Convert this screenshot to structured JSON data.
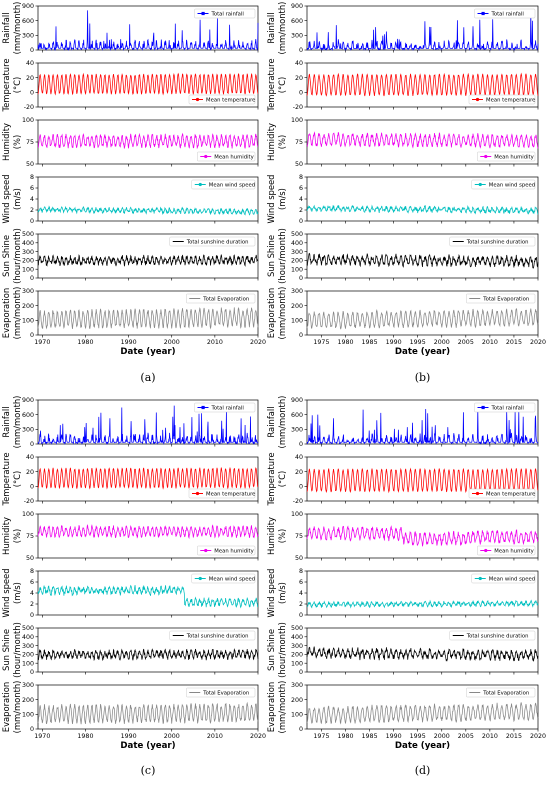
{
  "chart_data": [
    {
      "label": "(a)",
      "type": "line",
      "xlabel": "Date (year)",
      "xlim": [
        1969,
        2020
      ],
      "xticks": [
        1970,
        1980,
        1990,
        2000,
        2010,
        2020
      ],
      "panels": [
        {
          "name": "rainfall",
          "ylabel": [
            "Rainfall",
            "(mm/month)"
          ],
          "legend": "Total rainfall",
          "legend_marker": "square",
          "color": "#0000ff",
          "ylim": [
            0,
            900
          ],
          "yticks": [
            0,
            300,
            600,
            900
          ],
          "base": 90,
          "amp": 120,
          "spike": 420,
          "pattern": "spiky",
          "trend": 0,
          "noise": 0.5,
          "series": [
            {
              "name": "Total rainfall"
            }
          ]
        },
        {
          "name": "temperature",
          "ylabel": [
            "Temperature",
            "(°C)"
          ],
          "legend": "Mean temperature",
          "legend_marker": "dot",
          "color": "#ff0000",
          "ylim": [
            -20,
            40
          ],
          "yticks": [
            -20,
            0,
            20,
            40
          ],
          "base": 11,
          "amp": 13,
          "pattern": "seasonal",
          "trend": 0.5,
          "noise": 1.2,
          "series": [
            {
              "name": "Mean temperature"
            }
          ]
        },
        {
          "name": "humidity",
          "ylabel": [
            "Humidity",
            "(%)"
          ],
          "legend": "Mean humidity",
          "legend_marker": "dot",
          "color": "#ee00ee",
          "ylim": [
            50,
            100
          ],
          "yticks": [
            50,
            75,
            100
          ],
          "base": 76,
          "amp": 6,
          "pattern": "seasonal",
          "trend": 0,
          "noise": 2.5,
          "series": [
            {
              "name": "Mean humidity"
            }
          ]
        },
        {
          "name": "wind",
          "ylabel": [
            "Wind speed",
            "(m/s)"
          ],
          "legend": "Mean wind speed",
          "legend_marker": "dot",
          "color": "#00bfbf",
          "ylim": [
            0,
            8
          ],
          "yticks": [
            0,
            2,
            4,
            6,
            8
          ],
          "base": 2.1,
          "amp": 0.3,
          "pattern": "seasonal",
          "trend": -0.4,
          "noise": 0.3,
          "series": [
            {
              "name": "Mean wind speed"
            }
          ]
        },
        {
          "name": "sunshine",
          "ylabel": [
            "Sun Shine",
            "(hour/month)"
          ],
          "legend": "Total sunshine duration",
          "legend_marker": "line",
          "color": "#000000",
          "ylim": [
            0,
            500
          ],
          "yticks": [
            0,
            100,
            200,
            300,
            400,
            500
          ],
          "base": 195,
          "amp": 35,
          "pattern": "seasonal",
          "trend": 10,
          "noise": 30,
          "series": [
            {
              "name": "Total sunshine duration"
            }
          ]
        },
        {
          "name": "evaporation",
          "ylabel": [
            "Evaporation",
            "(mm/month)"
          ],
          "legend": "Total Evaporation",
          "legend_marker": "line",
          "color": "#888888",
          "ylim": [
            0,
            300
          ],
          "yticks": [
            0,
            100,
            200,
            300
          ],
          "base": 105,
          "amp": 55,
          "pattern": "seasonal",
          "trend": 15,
          "noise": 15,
          "series": [
            {
              "name": "Total Evaporation"
            }
          ]
        }
      ]
    },
    {
      "label": "(b)",
      "type": "line",
      "xlabel": "Date (year)",
      "xlim": [
        1972,
        2020
      ],
      "xticks": [
        1975,
        1980,
        1985,
        1990,
        1995,
        2000,
        2005,
        2010,
        2015,
        2020
      ],
      "panels": [
        {
          "name": "rainfall",
          "ylabel": [
            "Rainfall",
            "(mm/month)"
          ],
          "legend": "Total rainfall",
          "legend_marker": "square",
          "color": "#0000ff",
          "ylim": [
            0,
            900
          ],
          "yticks": [
            0,
            300,
            600,
            900
          ],
          "base": 80,
          "amp": 110,
          "spike": 420,
          "pattern": "spiky",
          "trend": 0,
          "noise": 0.5,
          "series": [
            {
              "name": "Total rainfall"
            }
          ]
        },
        {
          "name": "temperature",
          "ylabel": [
            "Temperature",
            "(°C)"
          ],
          "legend": "Mean temperature",
          "legend_marker": "dot",
          "color": "#ff0000",
          "ylim": [
            -20,
            40
          ],
          "yticks": [
            -20,
            0,
            20,
            40
          ],
          "base": 10,
          "amp": 14,
          "pattern": "seasonal",
          "trend": 0.5,
          "noise": 1.2,
          "series": [
            {
              "name": "Mean temperature"
            }
          ]
        },
        {
          "name": "humidity",
          "ylabel": [
            "Humidity",
            "(%)"
          ],
          "legend": "Mean humidity",
          "legend_marker": "dot",
          "color": "#ee00ee",
          "ylim": [
            50,
            100
          ],
          "yticks": [
            50,
            75,
            100
          ],
          "base": 78,
          "amp": 6,
          "pattern": "seasonal",
          "trend": -2,
          "noise": 2.5,
          "series": [
            {
              "name": "Mean humidity"
            }
          ]
        },
        {
          "name": "wind",
          "ylabel": [
            "Wind speed",
            "(m/s)"
          ],
          "legend": "Mean wind speed",
          "legend_marker": "dot",
          "color": "#00bfbf",
          "ylim": [
            0,
            8
          ],
          "yticks": [
            0,
            2,
            4,
            6,
            8
          ],
          "base": 2.3,
          "amp": 0.35,
          "pattern": "seasonal",
          "trend": -0.4,
          "noise": 0.35,
          "series": [
            {
              "name": "Mean wind speed"
            }
          ]
        },
        {
          "name": "sunshine",
          "ylabel": [
            "Sun Shine",
            "(hour/month)"
          ],
          "legend": "Total sunshine duration",
          "legend_marker": "line",
          "color": "#000000",
          "ylim": [
            0,
            500
          ],
          "yticks": [
            0,
            100,
            200,
            300,
            400,
            500
          ],
          "base": 210,
          "amp": 40,
          "pattern": "seasonal",
          "trend": -25,
          "noise": 35,
          "series": [
            {
              "name": "Total sunshine duration"
            }
          ]
        },
        {
          "name": "evaporation",
          "ylabel": [
            "Evaporation",
            "(mm/month)"
          ],
          "legend": "Total Evaporation",
          "legend_marker": "line",
          "color": "#888888",
          "ylim": [
            0,
            300
          ],
          "yticks": [
            0,
            100,
            200,
            300
          ],
          "base": 100,
          "amp": 50,
          "pattern": "seasonal",
          "trend": 20,
          "noise": 14,
          "series": [
            {
              "name": "Total Evaporation"
            }
          ]
        }
      ]
    },
    {
      "label": "(c)",
      "type": "line",
      "xlabel": "Date (year)",
      "xlim": [
        1969,
        2020
      ],
      "xticks": [
        1970,
        1980,
        1990,
        2000,
        2010,
        2020
      ],
      "panels": [
        {
          "name": "rainfall",
          "ylabel": [
            "Rainfall",
            "(mm/month)"
          ],
          "legend": "Total rainfall",
          "legend_marker": "square",
          "color": "#0000ff",
          "ylim": [
            0,
            900
          ],
          "yticks": [
            0,
            300,
            600,
            900
          ],
          "base": 90,
          "amp": 115,
          "spike": 420,
          "pattern": "spiky",
          "trend": 0,
          "noise": 0.5,
          "series": [
            {
              "name": "Total rainfall"
            }
          ]
        },
        {
          "name": "temperature",
          "ylabel": [
            "Temperature",
            "(°C)"
          ],
          "legend": "Mean temperature",
          "legend_marker": "dot",
          "color": "#ff0000",
          "ylim": [
            -20,
            40
          ],
          "yticks": [
            -20,
            0,
            20,
            40
          ],
          "base": 11,
          "amp": 13,
          "pattern": "seasonal",
          "trend": 0.5,
          "noise": 1.2,
          "series": [
            {
              "name": "Mean temperature"
            }
          ]
        },
        {
          "name": "humidity",
          "ylabel": [
            "Humidity",
            "(%)"
          ],
          "legend": "Mean humidity",
          "legend_marker": "dot",
          "color": "#ee00ee",
          "ylim": [
            50,
            100
          ],
          "yticks": [
            50,
            75,
            100
          ],
          "base": 80,
          "amp": 5,
          "pattern": "seasonal",
          "trend": 0,
          "noise": 2.2,
          "series": [
            {
              "name": "Mean humidity"
            }
          ]
        },
        {
          "name": "wind",
          "ylabel": [
            "Wind speed",
            "(m/s)"
          ],
          "legend": "Mean wind speed",
          "legend_marker": "dot",
          "color": "#00bfbf",
          "ylim": [
            0,
            8
          ],
          "yticks": [
            0,
            2,
            4,
            6,
            8
          ],
          "base": 4.3,
          "amp": 0.5,
          "pattern": "stepdown",
          "trend": -2.0,
          "noise": 0.4,
          "series": [
            {
              "name": "Mean wind speed"
            }
          ]
        },
        {
          "name": "sunshine",
          "ylabel": [
            "Sun Shine",
            "(hour/month)"
          ],
          "legend": "Total sunshine duration",
          "legend_marker": "line",
          "color": "#000000",
          "ylim": [
            0,
            500
          ],
          "yticks": [
            0,
            100,
            200,
            300,
            400,
            500
          ],
          "base": 195,
          "amp": 35,
          "pattern": "seasonal",
          "trend": 5,
          "noise": 30,
          "series": [
            {
              "name": "Total sunshine duration"
            }
          ]
        },
        {
          "name": "evaporation",
          "ylabel": [
            "Evaporation",
            "(mm/month)"
          ],
          "legend": "Total Evaporation",
          "legend_marker": "line",
          "color": "#888888",
          "ylim": [
            0,
            300
          ],
          "yticks": [
            0,
            100,
            200,
            300
          ],
          "base": 100,
          "amp": 55,
          "pattern": "seasonal",
          "trend": 10,
          "noise": 15,
          "series": [
            {
              "name": "Total Evaporation"
            }
          ]
        }
      ]
    },
    {
      "label": "(d)",
      "type": "line",
      "xlabel": "Date (year)",
      "xlim": [
        1972,
        2020
      ],
      "xticks": [
        1975,
        1980,
        1985,
        1990,
        1995,
        2000,
        2005,
        2010,
        2015,
        2020
      ],
      "panels": [
        {
          "name": "rainfall",
          "ylabel": [
            "Rainfall",
            "(mm/month)"
          ],
          "legend": "Total rainfall",
          "legend_marker": "square",
          "color": "#0000ff",
          "ylim": [
            0,
            900
          ],
          "yticks": [
            0,
            300,
            600,
            900
          ],
          "base": 85,
          "amp": 115,
          "spike": 430,
          "pattern": "spiky",
          "trend": 0,
          "noise": 0.5,
          "series": [
            {
              "name": "Total rainfall"
            }
          ]
        },
        {
          "name": "temperature",
          "ylabel": [
            "Temperature",
            "(°C)"
          ],
          "legend": "Mean temperature",
          "legend_marker": "dot",
          "color": "#ff0000",
          "ylim": [
            -20,
            40
          ],
          "yticks": [
            -20,
            0,
            20,
            40
          ],
          "base": 8,
          "amp": 15,
          "pattern": "seasonal",
          "trend": 0.5,
          "noise": 1.2,
          "series": [
            {
              "name": "Mean temperature"
            }
          ]
        },
        {
          "name": "humidity",
          "ylabel": [
            "Humidity",
            "(%)"
          ],
          "legend": "Mean humidity",
          "legend_marker": "dot",
          "color": "#ee00ee",
          "ylim": [
            50,
            100
          ],
          "yticks": [
            50,
            75,
            100
          ],
          "base": 78,
          "amp": 6,
          "pattern": "dip",
          "trend": -6,
          "noise": 2.8,
          "series": [
            {
              "name": "Mean humidity"
            }
          ]
        },
        {
          "name": "wind",
          "ylabel": [
            "Wind speed",
            "(m/s)"
          ],
          "legend": "Mean wind speed",
          "legend_marker": "dot",
          "color": "#00bfbf",
          "ylim": [
            0,
            8
          ],
          "yticks": [
            0,
            2,
            4,
            6,
            8
          ],
          "base": 1.9,
          "amp": 0.3,
          "pattern": "seasonal",
          "trend": 0.2,
          "noise": 0.3,
          "series": [
            {
              "name": "Mean wind speed"
            }
          ]
        },
        {
          "name": "sunshine",
          "ylabel": [
            "Sun Shine",
            "(hour/month)"
          ],
          "legend": "Total sunshine duration",
          "legend_marker": "line",
          "color": "#000000",
          "ylim": [
            0,
            500
          ],
          "yticks": [
            0,
            100,
            200,
            300,
            400,
            500
          ],
          "base": 215,
          "amp": 40,
          "pattern": "seasonal",
          "trend": -25,
          "noise": 35,
          "series": [
            {
              "name": "Total sunshine duration"
            }
          ]
        },
        {
          "name": "evaporation",
          "ylabel": [
            "Evaporation",
            "(mm/month)"
          ],
          "legend": "Total Evaporation",
          "legend_marker": "line",
          "color": "#888888",
          "ylim": [
            0,
            300
          ],
          "yticks": [
            0,
            100,
            200,
            300
          ],
          "base": 95,
          "amp": 50,
          "pattern": "seasonal",
          "trend": 25,
          "noise": 14,
          "series": [
            {
              "name": "Total Evaporation"
            }
          ]
        }
      ]
    }
  ]
}
